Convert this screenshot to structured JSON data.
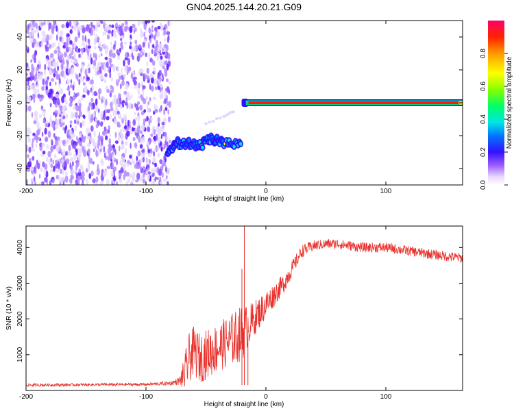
{
  "title": "GN04.2025.144.20.21.G09",
  "chart_data": [
    {
      "type": "heatmap",
      "xlabel": "Height of straight line (km)",
      "ylabel": "Frequency (Hz)",
      "xlim": [
        -200,
        164
      ],
      "ylim": [
        -50,
        50
      ],
      "x_ticks": [
        "-200",
        "-100",
        "0",
        "100"
      ],
      "y_ticks": [
        "-40",
        "-20",
        "0",
        "20",
        "40"
      ],
      "colorbar": {
        "label": "Normalized spectral amplitude",
        "range": [
          0,
          1
        ],
        "ticks": [
          "0.0",
          "0.2",
          "0.4",
          "0.6",
          "0.8"
        ]
      },
      "features": [
        {
          "kind": "noise",
          "x_range": [
            -200,
            -80
          ],
          "y_range": [
            -50,
            50
          ],
          "amplitude": 0.1
        },
        {
          "kind": "drifting-carrier",
          "points": [
            [
              -82,
              -31
            ],
            [
              -75,
              -24
            ],
            [
              -65,
              -25
            ],
            [
              -55,
              -26
            ],
            [
              -45,
              -22
            ],
            [
              -35,
              -25
            ],
            [
              -20,
              -24
            ]
          ],
          "amplitude": 0.45
        },
        {
          "kind": "faint-streak",
          "points": [
            [
              -50,
              -13
            ],
            [
              -35,
              -8
            ],
            [
              -25,
              -5
            ]
          ],
          "amplitude": 0.08
        },
        {
          "kind": "carrier",
          "x_range": [
            -18,
            164
          ],
          "y": 0,
          "amplitude": 1.0
        }
      ]
    },
    {
      "type": "line",
      "xlabel": "Height of straight line (km)",
      "ylabel": "SNR (10 * v/v)",
      "xlim": [
        -200,
        164
      ],
      "ylim": [
        0,
        4600
      ],
      "x_ticks": [
        "-200",
        "-100",
        "0",
        "100"
      ],
      "y_ticks": [
        "1000",
        "2000",
        "3000",
        "4000"
      ],
      "color": "#e8302a",
      "series": [
        {
          "x": [
            -200,
            -150,
            -100,
            -80,
            -72,
            -68,
            -64,
            -60,
            -55,
            -50,
            -45,
            -40,
            -35,
            -30,
            -25,
            -20,
            -15,
            -10,
            -5,
            0,
            5,
            10,
            15,
            20,
            25,
            30,
            40,
            50,
            60,
            70,
            80,
            100,
            120,
            140,
            164
          ],
          "y": [
            150,
            160,
            170,
            200,
            260,
            450,
            900,
            1100,
            900,
            1000,
            1100,
            1200,
            1300,
            1400,
            1500,
            1600,
            1800,
            2000,
            2200,
            2400,
            2600,
            2800,
            3000,
            3300,
            3600,
            3900,
            4050,
            4100,
            4100,
            4050,
            4000,
            4000,
            3900,
            3800,
            3700
          ],
          "noise": [
            40,
            40,
            40,
            60,
            100,
            500,
            700,
            700,
            700,
            700,
            700,
            700,
            700,
            750,
            750,
            800,
            600,
            500,
            450,
            400,
            350,
            300,
            280,
            250,
            200,
            180,
            150,
            140,
            140,
            140,
            140,
            140,
            140,
            140,
            140
          ],
          "spikes": [
            [
              -18,
              4600
            ],
            [
              -20,
              3400
            ],
            [
              -15,
              1500
            ]
          ]
        }
      ]
    }
  ]
}
